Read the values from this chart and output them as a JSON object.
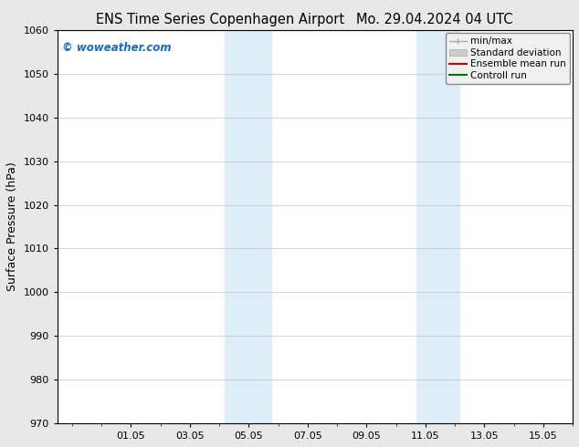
{
  "title_left": "ENS Time Series Copenhagen Airport",
  "title_right": "Mo. 29.04.2024 04 UTC",
  "ylabel": "Surface Pressure (hPa)",
  "ylim": [
    970,
    1060
  ],
  "yticks": [
    970,
    980,
    990,
    1000,
    1010,
    1020,
    1030,
    1040,
    1050,
    1060
  ],
  "xtick_labels": [
    "01.05",
    "03.05",
    "05.05",
    "07.05",
    "09.05",
    "11.05",
    "13.05",
    "15.05"
  ],
  "xtick_positions": [
    2,
    4,
    6,
    8,
    10,
    12,
    14,
    16
  ],
  "xlim_left": -0.5,
  "xlim_right": 17.0,
  "shading_regions": [
    {
      "xmin": 5.2,
      "xmax": 6.8
    },
    {
      "xmin": 11.7,
      "xmax": 13.2
    }
  ],
  "shading_color": "#ddeef8",
  "legend_entries": [
    {
      "label": "min/max",
      "color": "#aaaaaa"
    },
    {
      "label": "Standard deviation",
      "color": "#cccccc"
    },
    {
      "label": "Ensemble mean run",
      "color": "#cc0000"
    },
    {
      "label": "Controll run",
      "color": "#007700"
    }
  ],
  "watermark": "© woweather.com",
  "watermark_color": "#1a6bbf",
  "background_color": "#e8e8e8",
  "plot_bg_color": "#ffffff",
  "grid_color": "#cccccc",
  "tick_color": "#000000",
  "title_fontsize": 10.5,
  "label_fontsize": 9,
  "tick_fontsize": 8,
  "legend_fontsize": 7.5
}
